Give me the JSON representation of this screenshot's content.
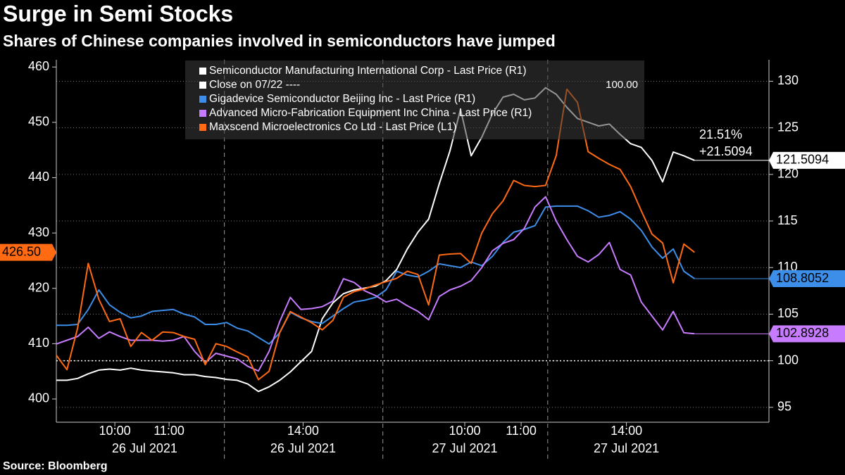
{
  "chart_data": {
    "type": "line",
    "title": "Surge in Semi Stocks",
    "subtitle": "Shares of Chinese companies involved in semiconductors have jumped",
    "source": "Source: Bloomberg",
    "xlim": [
      0,
      67
    ],
    "xticks": [
      {
        "value": 5.5,
        "label": "10:00"
      },
      {
        "value": 10.6,
        "label": "11:00"
      },
      {
        "value": 23.2,
        "label": "14:00"
      },
      {
        "value": 38.4,
        "label": "10:00"
      },
      {
        "value": 43.7,
        "label": "11:00"
      },
      {
        "value": 53.6,
        "label": "14:00"
      }
    ],
    "date_labels": [
      {
        "value": 8.3,
        "label": "26 Jul 2021"
      },
      {
        "value": 23.2,
        "label": "26 Jul 2021"
      },
      {
        "value": 38.4,
        "label": "27 Jul 2021"
      },
      {
        "value": 53.6,
        "label": "27 Jul 2021"
      }
    ],
    "separators": [
      15.8,
      30.7,
      46.2
    ],
    "ylim": [
      395.8,
      461.3
    ],
    "yticks": [
      400,
      410,
      420,
      430,
      440,
      450,
      460
    ],
    "y2lim": [
      93.4,
      132.3
    ],
    "y2ticks": [
      95,
      100,
      105,
      110,
      115,
      120,
      125,
      130
    ],
    "grid": true,
    "reference_line": {
      "name": "Close on 07/22 ----",
      "value": 100,
      "label": "100.00",
      "color": "#ffffff",
      "axis": "y2"
    },
    "annotations": [
      "21.51%",
      "+21.5094"
    ],
    "series": [
      {
        "name": "Semiconductor Manufacturing International Corp - Last Price (R1)",
        "color": "#ffffff",
        "axis": "y2",
        "last_label": "121.5094",
        "values": [
          97.9,
          97.9,
          98.1,
          98.6,
          99.0,
          99.1,
          99.0,
          99.2,
          99.0,
          98.9,
          98.8,
          98.7,
          98.5,
          98.5,
          98.3,
          98.2,
          98.0,
          97.9,
          97.5,
          96.7,
          97.2,
          97.9,
          98.8,
          99.9,
          101.0,
          104.5,
          106.2,
          107.2,
          107.6,
          107.8,
          108.0,
          108.6,
          109.8,
          112.0,
          113.8,
          115.2,
          119.0,
          122.5,
          127.0,
          122.0,
          124.0,
          126.5,
          128.3,
          128.6,
          128.0,
          128.2,
          129.3,
          128.6,
          127.2,
          126.0,
          125.6,
          125.2,
          125.4,
          124.3,
          123.3,
          122.9,
          121.5,
          119.2,
          122.4,
          122.0,
          121.5094
        ]
      },
      {
        "name": "Gigadevice Semiconductor Beijing Inc - Last Price (R1)",
        "color": "#3d8ee8",
        "axis": "y2",
        "last_label": "108.8052",
        "values": [
          103.8,
          103.8,
          103.9,
          105.5,
          107.6,
          106.0,
          105.2,
          104.6,
          104.8,
          105.3,
          105.4,
          105.5,
          105.0,
          104.7,
          103.9,
          103.9,
          104.1,
          103.5,
          103.2,
          102.5,
          101.8,
          103.0,
          105.2,
          104.6,
          104.2,
          104.0,
          104.8,
          105.6,
          106.3,
          106.5,
          106.8,
          107.6,
          109.6,
          109.2,
          109.0,
          109.6,
          110.4,
          110.2,
          110.0,
          110.6,
          110.2,
          111.2,
          112.7,
          113.8,
          114.1,
          114.5,
          116.5,
          116.6,
          116.6,
          116.6,
          116.1,
          115.4,
          115.6,
          116.0,
          115.2,
          114.0,
          112.2,
          111.0,
          112.0,
          109.6,
          108.8052
        ]
      },
      {
        "name": "Advanced Micro-Fabrication Equipment Inc China - Last Price (R1)",
        "color": "#c77cff",
        "axis": "y2",
        "last_label": "102.8928",
        "values": [
          101.8,
          102.2,
          102.6,
          103.6,
          102.4,
          103.1,
          102.6,
          102.2,
          102.2,
          102.2,
          102.1,
          102.2,
          102.6,
          101.0,
          99.8,
          100.8,
          100.5,
          100.2,
          99.4,
          98.9,
          101.0,
          104.2,
          106.8,
          105.5,
          105.6,
          105.8,
          106.4,
          108.8,
          108.4,
          107.5,
          107.0,
          106.3,
          106.6,
          105.9,
          105.3,
          104.4,
          106.9,
          107.6,
          108.0,
          108.6,
          110.0,
          111.8,
          112.6,
          113.0,
          114.2,
          116.5,
          117.6,
          115.0,
          113.0,
          111.2,
          110.6,
          111.4,
          112.7,
          109.8,
          109.2,
          106.3,
          104.8,
          103.3,
          105.3,
          103.0,
          102.8928
        ]
      },
      {
        "name": "Maxscend Microelectronics Co Ltd - Last Price (L1)",
        "color": "#ff6a13",
        "axis": "y",
        "last_label": "426.50",
        "values": [
          407.9,
          405.3,
          412.8,
          424.5,
          418.0,
          414.0,
          414.5,
          409.5,
          412.0,
          410.6,
          412.1,
          412.0,
          411.3,
          410.8,
          406.2,
          410.0,
          409.5,
          408.5,
          407.6,
          403.5,
          405.0,
          412.0,
          415.8,
          414.8,
          413.8,
          412.5,
          414.2,
          418.4,
          419.4,
          419.9,
          420.6,
          421.2,
          421.8,
          423.1,
          422.5,
          417.0,
          426.0,
          426.2,
          426.3,
          424.5,
          430.0,
          433.5,
          435.8,
          439.5,
          438.6,
          438.4,
          438.6,
          444.0,
          456.0,
          453.6,
          444.7,
          443.5,
          442.4,
          441.5,
          438.4,
          434.0,
          429.8,
          428.2,
          421.0,
          428.0,
          426.5
        ]
      }
    ]
  }
}
